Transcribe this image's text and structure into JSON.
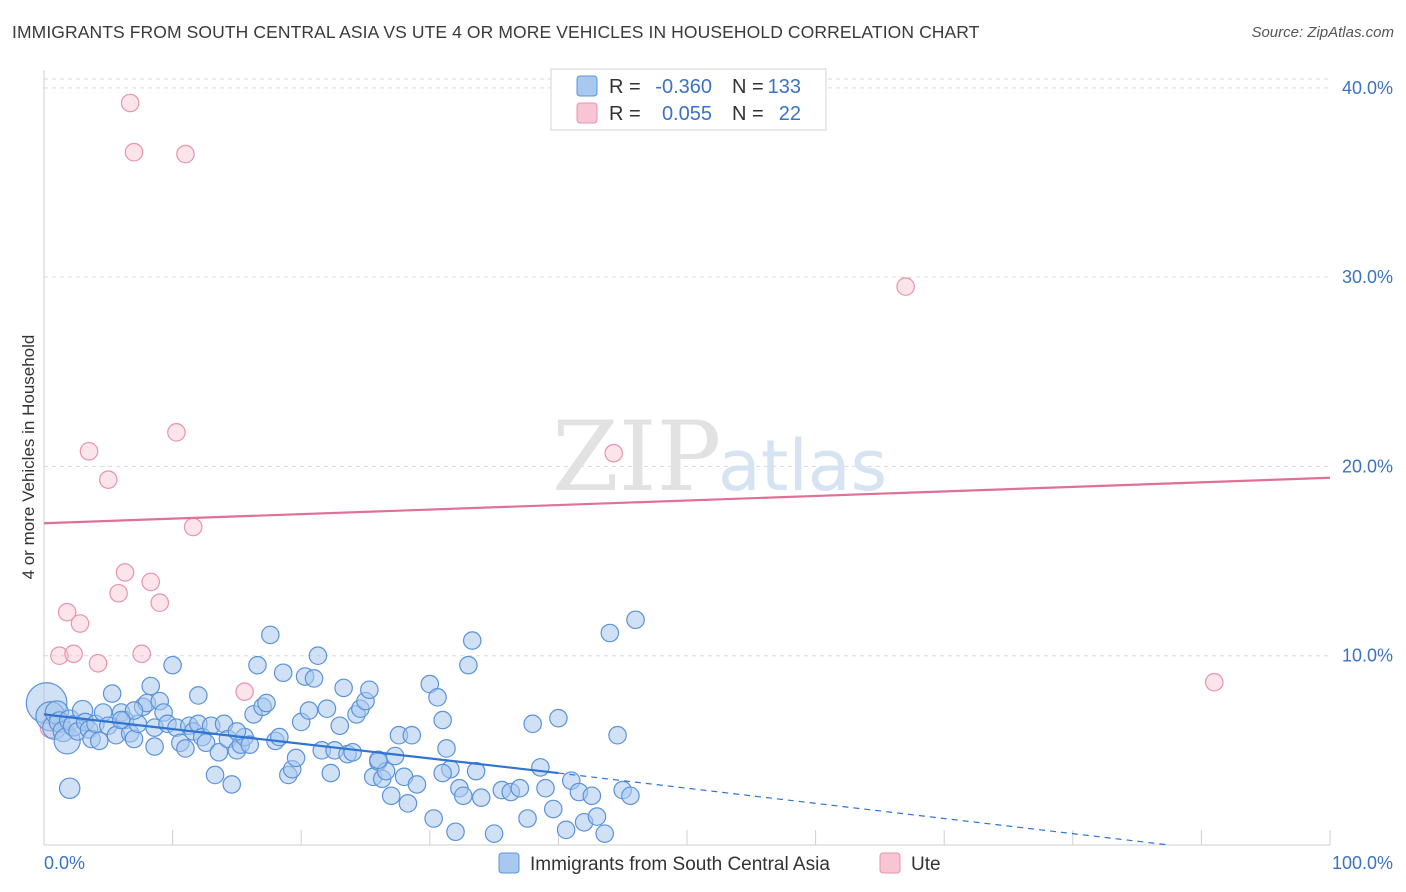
{
  "title": "IMMIGRANTS FROM SOUTH CENTRAL ASIA VS UTE 4 OR MORE VEHICLES IN HOUSEHOLD CORRELATION CHART",
  "source": "Source: ZipAtlas.com",
  "watermark": {
    "zip": "ZIP",
    "atlas": "atlas"
  },
  "colors": {
    "blue_fill": "#a9c8ef",
    "blue_stroke": "#5b93d9",
    "blue_line": "#2f74d0",
    "pink_fill": "#f7c5d3",
    "pink_stroke": "#e993ae",
    "pink_line": "#e07098",
    "grid": "#d9d9d9",
    "axis_text": "#3b73c4"
  },
  "legend": {
    "r_label": "R =",
    "n_label": "N =",
    "series": [
      {
        "r": "-0.360",
        "n": "133"
      },
      {
        "r": "0.055",
        "n": "22"
      }
    ]
  },
  "chart_data": {
    "type": "scatter",
    "xlabel": "",
    "ylabel": "4 or more Vehicles in Household",
    "xlim": [
      0,
      100
    ],
    "ylim": [
      0,
      42
    ],
    "x_tick_labels": [
      "0.0%",
      "100.0%"
    ],
    "y_ticks": [
      10,
      20,
      30,
      40
    ],
    "y_tick_labels": [
      "10.0%",
      "20.0%",
      "30.0%",
      "40.0%"
    ],
    "grid": true,
    "legend_position": "top-center",
    "series": [
      {
        "name": "Immigrants from South Central Asia",
        "color": "#a9c8ef",
        "trend": {
          "x0": 0,
          "y0": 6.9,
          "x1": 40,
          "y1": 3.8,
          "dashed_to_x": 100,
          "dashed_to_y": -1.0
        },
        "points": [
          [
            0.2,
            7.5,
            14
          ],
          [
            0.5,
            6.8,
            10
          ],
          [
            0.8,
            6.2,
            8
          ],
          [
            1.0,
            7.0,
            8
          ],
          [
            1.2,
            6.5,
            7
          ],
          [
            1.5,
            6.0,
            7
          ],
          [
            1.8,
            5.5,
            9
          ],
          [
            2.0,
            6.6,
            7
          ],
          [
            2.3,
            6.3,
            7
          ],
          [
            2.6,
            6.0,
            6
          ],
          [
            3.0,
            7.1,
            7
          ],
          [
            3.2,
            6.5,
            6
          ],
          [
            3.5,
            6.1,
            6
          ],
          [
            3.7,
            5.6,
            6
          ],
          [
            4.0,
            6.4,
            6
          ],
          [
            4.3,
            5.5,
            6
          ],
          [
            4.6,
            7.0,
            6
          ],
          [
            5.0,
            6.3,
            6
          ],
          [
            5.3,
            8.0,
            6
          ],
          [
            5.6,
            5.8,
            6
          ],
          [
            6.0,
            7.0,
            6
          ],
          [
            6.3,
            6.6,
            6
          ],
          [
            6.7,
            5.9,
            6
          ],
          [
            7.0,
            5.6,
            6
          ],
          [
            7.3,
            6.4,
            6
          ],
          [
            7.7,
            7.3,
            6
          ],
          [
            8.0,
            7.5,
            6
          ],
          [
            8.3,
            8.4,
            6
          ],
          [
            8.6,
            6.2,
            6
          ],
          [
            9.0,
            7.6,
            6
          ],
          [
            9.3,
            7.0,
            6
          ],
          [
            9.6,
            6.4,
            6
          ],
          [
            10.0,
            9.5,
            6
          ],
          [
            10.3,
            6.2,
            6
          ],
          [
            10.6,
            5.4,
            6
          ],
          [
            11.0,
            5.1,
            6
          ],
          [
            11.3,
            6.3,
            6
          ],
          [
            11.6,
            6.0,
            6
          ],
          [
            12.0,
            6.4,
            6
          ],
          [
            12.3,
            5.7,
            6
          ],
          [
            12.6,
            5.4,
            6
          ],
          [
            13.0,
            6.3,
            6
          ],
          [
            13.3,
            3.7,
            6
          ],
          [
            13.6,
            4.9,
            6
          ],
          [
            14.0,
            6.4,
            6
          ],
          [
            14.3,
            5.6,
            6
          ],
          [
            14.6,
            3.2,
            6
          ],
          [
            15.0,
            5.0,
            6
          ],
          [
            15.3,
            5.3,
            6
          ],
          [
            15.6,
            5.7,
            6
          ],
          [
            16.0,
            5.3,
            6
          ],
          [
            16.3,
            6.9,
            6
          ],
          [
            16.6,
            9.5,
            6
          ],
          [
            17.0,
            7.3,
            6
          ],
          [
            17.3,
            7.5,
            6
          ],
          [
            17.6,
            11.1,
            6
          ],
          [
            18.0,
            5.5,
            6
          ],
          [
            18.3,
            5.7,
            6
          ],
          [
            18.6,
            9.1,
            6
          ],
          [
            19.0,
            3.7,
            6
          ],
          [
            19.3,
            4.0,
            6
          ],
          [
            19.6,
            4.6,
            6
          ],
          [
            20.0,
            6.5,
            6
          ],
          [
            20.3,
            8.9,
            6
          ],
          [
            20.6,
            7.1,
            6
          ],
          [
            21.0,
            8.8,
            6
          ],
          [
            21.3,
            10.0,
            6
          ],
          [
            21.6,
            5.0,
            6
          ],
          [
            22.0,
            7.2,
            6
          ],
          [
            22.3,
            3.8,
            6
          ],
          [
            22.6,
            5.0,
            6
          ],
          [
            23.0,
            6.3,
            6
          ],
          [
            23.3,
            8.3,
            6
          ],
          [
            23.6,
            4.8,
            6
          ],
          [
            24.0,
            4.9,
            6
          ],
          [
            24.3,
            6.9,
            6
          ],
          [
            24.6,
            7.2,
            6
          ],
          [
            25.0,
            7.6,
            6
          ],
          [
            25.3,
            8.2,
            6
          ],
          [
            25.6,
            3.6,
            6
          ],
          [
            26.0,
            4.4,
            6
          ],
          [
            26.3,
            3.5,
            6
          ],
          [
            26.6,
            3.9,
            6
          ],
          [
            27.0,
            2.6,
            6
          ],
          [
            27.3,
            4.7,
            6
          ],
          [
            27.6,
            5.8,
            6
          ],
          [
            28.0,
            3.6,
            6
          ],
          [
            28.3,
            2.2,
            6
          ],
          [
            28.6,
            5.8,
            6
          ],
          [
            29.0,
            3.2,
            6
          ],
          [
            30.0,
            8.5,
            6
          ],
          [
            30.3,
            1.4,
            6
          ],
          [
            30.6,
            7.8,
            6
          ],
          [
            31.0,
            6.6,
            6
          ],
          [
            31.3,
            5.1,
            6
          ],
          [
            31.6,
            4.0,
            6
          ],
          [
            32.0,
            0.7,
            6
          ],
          [
            32.3,
            3.0,
            6
          ],
          [
            32.6,
            2.6,
            6
          ],
          [
            33.0,
            9.5,
            6
          ],
          [
            33.3,
            10.8,
            6
          ],
          [
            33.6,
            3.9,
            6
          ],
          [
            34.0,
            2.5,
            6
          ],
          [
            35.0,
            0.6,
            6
          ],
          [
            35.6,
            2.9,
            6
          ],
          [
            36.3,
            2.8,
            6
          ],
          [
            37.0,
            3.0,
            6
          ],
          [
            37.6,
            1.4,
            6
          ],
          [
            38.0,
            6.4,
            6
          ],
          [
            38.6,
            4.1,
            6
          ],
          [
            39.0,
            3.0,
            6
          ],
          [
            39.6,
            1.9,
            6
          ],
          [
            40.0,
            6.7,
            6
          ],
          [
            40.6,
            0.8,
            6
          ],
          [
            41.0,
            3.4,
            6
          ],
          [
            41.6,
            2.8,
            6
          ],
          [
            42.0,
            1.2,
            6
          ],
          [
            42.6,
            2.6,
            6
          ],
          [
            43.0,
            1.5,
            6
          ],
          [
            43.6,
            0.6,
            6
          ],
          [
            44.0,
            11.2,
            6
          ],
          [
            44.6,
            5.8,
            6
          ],
          [
            45.0,
            2.9,
            6
          ],
          [
            45.6,
            2.6,
            6
          ],
          [
            46.0,
            11.9,
            6
          ],
          [
            2.0,
            3.0,
            7
          ],
          [
            7.0,
            7.1,
            6
          ],
          [
            8.6,
            5.2,
            6
          ],
          [
            15.0,
            6.0,
            6
          ],
          [
            26.0,
            4.5,
            6
          ],
          [
            12.0,
            7.9,
            6
          ],
          [
            6.0,
            6.6,
            6
          ],
          [
            31.0,
            3.8,
            6
          ]
        ]
      },
      {
        "name": "Ute",
        "color": "#f7c5d3",
        "trend": {
          "x0": 0,
          "y0": 17.0,
          "x1": 100,
          "y1": 19.4
        },
        "points": [
          [
            0.5,
            6.2,
            7
          ],
          [
            1.2,
            10.0,
            6
          ],
          [
            1.8,
            12.3,
            6
          ],
          [
            2.3,
            10.1,
            6
          ],
          [
            2.8,
            11.7,
            6
          ],
          [
            3.5,
            20.8,
            6
          ],
          [
            4.2,
            9.6,
            6
          ],
          [
            5.0,
            19.3,
            6
          ],
          [
            5.8,
            13.3,
            6
          ],
          [
            6.3,
            14.4,
            6
          ],
          [
            6.7,
            39.2,
            6
          ],
          [
            7.0,
            36.6,
            6
          ],
          [
            7.6,
            10.1,
            6
          ],
          [
            8.3,
            13.9,
            6
          ],
          [
            9.0,
            12.8,
            6
          ],
          [
            10.3,
            21.8,
            6
          ],
          [
            11.0,
            36.5,
            6
          ],
          [
            11.6,
            16.8,
            6
          ],
          [
            15.6,
            8.1,
            6
          ],
          [
            44.3,
            20.7,
            6
          ],
          [
            67.0,
            29.5,
            6
          ],
          [
            91.0,
            8.6,
            6
          ]
        ]
      }
    ]
  }
}
